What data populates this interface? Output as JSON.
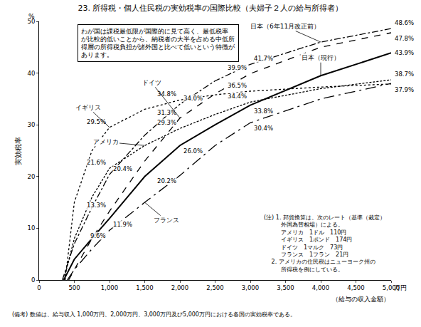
{
  "chart_data": {
    "type": "line",
    "title": "23. 所得税・個人住民税の実効税率の国際比較（夫婦子２人の給与所得者）",
    "x_label": "（給与の収入金額）",
    "x_unit": "万円",
    "y_label": "実効税率",
    "y_unit": "%",
    "xlim": [
      0,
      5000
    ],
    "xticks": [
      0,
      500,
      {
        "value": 1000,
        "label": "1,000"
      },
      {
        "value": 1500,
        "label": "1,500"
      },
      {
        "value": 2000,
        "label": "2,000"
      },
      {
        "value": 2500,
        "label": "2,500"
      },
      {
        "value": 3000,
        "label": "3,000"
      },
      {
        "value": 3500,
        "label": "3,500"
      },
      {
        "value": 4000,
        "label": "4,000"
      },
      {
        "value": 4500,
        "label": "4,500"
      },
      {
        "value": 5000,
        "label": "5,000"
      }
    ],
    "ylim": [
      0,
      50
    ],
    "yticks": [
      0,
      10,
      20,
      30,
      40,
      50
    ],
    "grid": false,
    "data_labels": true,
    "series": [
      {
        "name": "イギリス",
        "color": "#000000",
        "line_style": "dotted",
        "x": [
          370,
          500,
          750,
          1000,
          1500,
          2000,
          2500,
          3000,
          4000,
          5000
        ],
        "values": [
          0,
          15,
          25,
          29.5,
          33,
          34.8,
          35.8,
          36.5,
          37.3,
          37.9
        ],
        "value_labels": [
          null,
          null,
          null,
          "29.5%",
          null,
          "34.8%",
          null,
          "36.5%",
          null,
          "37.9%"
        ]
      },
      {
        "name": "日本（6年11月改正前）",
        "color": "#000000",
        "line_style": "dashdot",
        "x": [
          330,
          500,
          750,
          1000,
          1500,
          2000,
          2500,
          3000,
          4000,
          5000
        ],
        "values": [
          0,
          7,
          14,
          20.4,
          28,
          34.0,
          38.5,
          41.7,
          46,
          48.6
        ],
        "value_labels": [
          null,
          null,
          null,
          "20.4%",
          null,
          "34.0%",
          null,
          "41.7%",
          null,
          "48.6%"
        ]
      },
      {
        "name": "ドイツ",
        "color": "#000000",
        "line_style": "dashed",
        "x": [
          420,
          500,
          750,
          1000,
          1500,
          2000,
          2500,
          3000,
          4000,
          5000
        ],
        "values": [
          0,
          2,
          8,
          13.3,
          23,
          31.3,
          36,
          39.9,
          45,
          47.8
        ],
        "value_labels": [
          null,
          null,
          null,
          "13.3%",
          null,
          "31.3%",
          null,
          "39.9%",
          null,
          "47.8%"
        ]
      },
      {
        "name": "アメリカ",
        "color": "#000000",
        "line_style": "shortdashed",
        "x": [
          350,
          500,
          750,
          1000,
          1500,
          2000,
          2500,
          3000,
          4000,
          5000
        ],
        "values": [
          0,
          8,
          16,
          21.6,
          26,
          29.3,
          32,
          34.4,
          37,
          38.7
        ],
        "value_labels": [
          null,
          null,
          null,
          "21.6%",
          null,
          "29.3%",
          null,
          "34.4%",
          null,
          "38.7%"
        ]
      },
      {
        "name": "日本（現行）",
        "color": "#000000",
        "line_style": "solid",
        "x": [
          350,
          500,
          750,
          1000,
          1500,
          2000,
          2500,
          3000,
          4000,
          5000
        ],
        "values": [
          0,
          4,
          8,
          11.9,
          20,
          26.0,
          30,
          33.8,
          39.5,
          43.9
        ],
        "value_labels": [
          null,
          null,
          null,
          "11.9%",
          null,
          "26.0%",
          null,
          "33.8%",
          null,
          "43.9%"
        ]
      },
      {
        "name": "フランス",
        "color": "#000000",
        "line_style": "longdashdot",
        "x": [
          400,
          500,
          750,
          1000,
          1500,
          2000,
          2500,
          3000,
          4000,
          5000
        ],
        "values": [
          0,
          2,
          6,
          9.6,
          15,
          20.2,
          26,
          30.4,
          35,
          38.0
        ],
        "value_labels": [
          null,
          null,
          null,
          "9.6%",
          null,
          "20.2%",
          null,
          "30.4%",
          null,
          null
        ]
      }
    ],
    "annotations": {
      "box_lines": [
        "わが国は課税最低限が国際的に見て高く、最低税率",
        "が比較的低いことから、納税者の大半を占める中低所",
        "得層の所得税負担が諸外国と比べて低いという特徴が",
        "あります。"
      ],
      "notes": {
        "heading": "(注)",
        "note1_number": "1.",
        "note1_lines": [
          "邦貨換算は、次のレート（基準（裁定）",
          "外国為替相場）による。"
        ],
        "rates": [
          [
            "アメリカ",
            "1ドル",
            "110円"
          ],
          [
            "イギリス",
            "1ポンド",
            "174円"
          ],
          [
            "ドイツ",
            "1マルク",
            "73円"
          ],
          [
            "フランス",
            "1フラン",
            "21円"
          ]
        ],
        "note2_number": "2.",
        "note2_lines": [
          "アメリカの住民税はニューヨーク州の",
          "所得税を例にしている。"
        ]
      },
      "footnote": "(備考) 数値は、給与収入 1,000万円、2,000万円、3,000万円及び5,000万円における各国の実効税率である。"
    }
  }
}
